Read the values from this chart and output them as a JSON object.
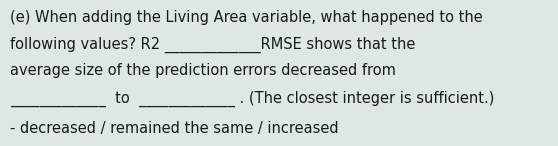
{
  "background_color": "#dde8e0",
  "text_color": "#1a1a1a",
  "lines": [
    "(e) When adding the Living Area variable, what happened to the",
    "following values? R2 _____________RMSE shows that the",
    "average size of the prediction errors decreased from",
    "_____________  to  _____________ . (The closest integer is sufficient.)",
    "- decreased / remained the same / increased"
  ],
  "font_size": 10.5,
  "figwidth": 5.58,
  "figheight": 1.46,
  "dpi": 100
}
